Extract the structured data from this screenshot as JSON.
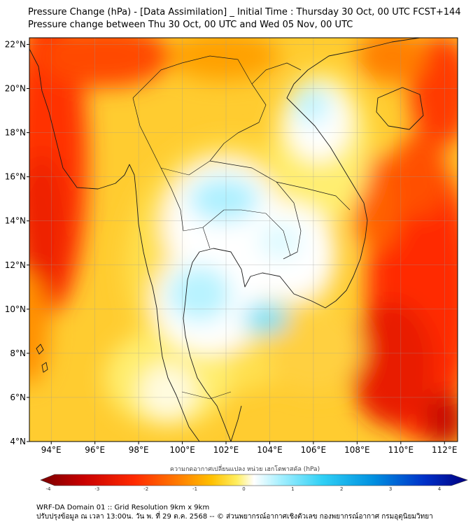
{
  "title": {
    "line1": "Pressure Change (hPa) - [Data Assimilation] _ Initial Time : Thursday 30 Oct, 00 UTC FCST+144",
    "line2": "Pressure change between Thu 30 Oct, 00 UTC and Wed 05 Nov, 00 UTC"
  },
  "map": {
    "lat_labels": [
      "22°N",
      "20°N",
      "18°N",
      "16°N",
      "14°N",
      "12°N",
      "10°N",
      "8°N",
      "6°N",
      "4°N"
    ],
    "lon_labels": [
      "94°E",
      "96°E",
      "98°E",
      "100°E",
      "102°E",
      "104°E",
      "106°E",
      "108°E",
      "110°E",
      "112°E"
    ],
    "lat_range": [
      4,
      22.3
    ],
    "lon_range": [
      93.0,
      112.6
    ],
    "grid": true
  },
  "colorbar": {
    "label": "ความกดอากาศเปลี่ยนแปลง หน่วย เฮกโตพาสคัล (hPa)",
    "ticks": [
      "-4",
      "-3",
      "-2",
      "-1",
      "0",
      "1",
      "2",
      "3",
      "4"
    ],
    "range": [
      -4,
      4
    ],
    "colors": [
      "#7a0000",
      "#c80000",
      "#ff2a00",
      "#ff7a00",
      "#ffc000",
      "#ffee60",
      "#ffffff",
      "#a8f0ff",
      "#30d0f5",
      "#0090e0",
      "#0030c8",
      "#000080"
    ]
  },
  "footer": {
    "line1": "WRF-DA Domain 01 :: Grid Resolution 9km x 9km",
    "line2": "ปรับปรุงข้อมูล ณ เวลา 13:00น. วัน พ. ที่ 29 ต.ค. 2568 -- © ส่วนพยากรณ์อากาศเชิงตัวเลข กองพยากรณ์อากาศ กรมอุตุนิยมวิทยา"
  }
}
